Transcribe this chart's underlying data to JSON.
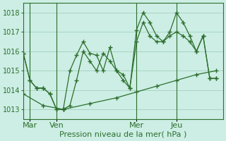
{
  "background_color": "#cceee4",
  "grid_color": "#aad4c4",
  "line_color": "#2d6e2d",
  "title": "Pression niveau de la mer( hPa )",
  "ylabel_fontsize": 7,
  "xlabel_fontsize": 8,
  "ylim": [
    1012.5,
    1018.5
  ],
  "yticks": [
    1013,
    1014,
    1015,
    1016,
    1017,
    1018
  ],
  "xlim": [
    0,
    30
  ],
  "day_labels": [
    "Mar",
    "Ven",
    "Mer",
    "Jeu"
  ],
  "day_positions": [
    1,
    5,
    17,
    23
  ],
  "line1_x": [
    0,
    1,
    2,
    3,
    4,
    5,
    6,
    7,
    8,
    9,
    10,
    11,
    12,
    13,
    14,
    15,
    16,
    17,
    18,
    19,
    20,
    21,
    22,
    23,
    24,
    25,
    26,
    27,
    28,
    29
  ],
  "line1_y": [
    1015.9,
    1014.5,
    1014.1,
    1014.1,
    1013.8,
    1013.0,
    1013.0,
    1015.0,
    1015.8,
    1016.5,
    1015.9,
    1015.8,
    1015.0,
    1016.2,
    1015.0,
    1014.8,
    1014.1,
    1017.1,
    1018.0,
    1017.5,
    1016.8,
    1016.5,
    1017.0,
    1018.0,
    1017.5,
    1016.8,
    1016.0,
    1016.8,
    1014.6,
    1014.6
  ],
  "line2_x": [
    0,
    1,
    2,
    3,
    4,
    5,
    6,
    7,
    8,
    9,
    10,
    11,
    12,
    13,
    14,
    15,
    16,
    17,
    18,
    19,
    20,
    21,
    22,
    23,
    24,
    25,
    26,
    27,
    28,
    29
  ],
  "line2_y": [
    1015.9,
    1014.5,
    1014.1,
    1014.1,
    1013.8,
    1013.0,
    1013.0,
    1013.2,
    1014.5,
    1016.0,
    1015.5,
    1015.0,
    1015.9,
    1015.5,
    1015.0,
    1014.5,
    1014.1,
    1016.5,
    1017.5,
    1016.8,
    1016.5,
    1016.5,
    1016.8,
    1017.0,
    1016.8,
    1016.5,
    1016.0,
    1016.8,
    1014.6,
    1014.6
  ],
  "line3_x": [
    0,
    3,
    6,
    10,
    14,
    17,
    20,
    23,
    26,
    29
  ],
  "line3_y": [
    1013.8,
    1013.2,
    1013.0,
    1013.3,
    1013.6,
    1013.9,
    1014.2,
    1014.5,
    1014.8,
    1015.0
  ]
}
